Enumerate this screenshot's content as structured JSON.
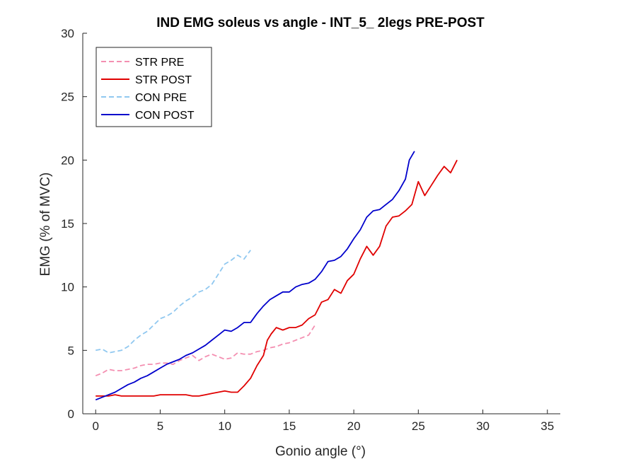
{
  "chart_data": {
    "type": "line",
    "title": "IND EMG soleus vs angle - INT_5_ 2legs PRE-POST",
    "xlabel": "Gonio angle (°)",
    "ylabel": "EMG (% of MVC)",
    "xlim": [
      -1,
      36
    ],
    "ylim": [
      0,
      30
    ],
    "xticks": [
      0,
      5,
      10,
      15,
      20,
      25,
      30,
      35
    ],
    "yticks": [
      0,
      5,
      10,
      15,
      20,
      25,
      30
    ],
    "grid": false,
    "legend_position": "top-left",
    "series": [
      {
        "name": "STR PRE",
        "color": "#f48fb1",
        "dash": true,
        "points": [
          [
            0,
            3.0
          ],
          [
            0.5,
            3.2
          ],
          [
            1,
            3.5
          ],
          [
            1.5,
            3.4
          ],
          [
            2,
            3.4
          ],
          [
            2.5,
            3.5
          ],
          [
            3,
            3.6
          ],
          [
            3.5,
            3.8
          ],
          [
            4,
            3.9
          ],
          [
            4.5,
            3.9
          ],
          [
            5,
            4.0
          ],
          [
            5.5,
            4.0
          ],
          [
            6,
            3.9
          ],
          [
            6.5,
            4.2
          ],
          [
            7,
            4.4
          ],
          [
            7.5,
            4.6
          ],
          [
            8,
            4.2
          ],
          [
            8.5,
            4.5
          ],
          [
            9,
            4.7
          ],
          [
            9.5,
            4.5
          ],
          [
            10,
            4.3
          ],
          [
            10.5,
            4.4
          ],
          [
            11,
            4.8
          ],
          [
            11.5,
            4.7
          ],
          [
            12,
            4.7
          ],
          [
            12.5,
            4.9
          ],
          [
            13,
            5.0
          ],
          [
            13.5,
            5.2
          ],
          [
            14,
            5.3
          ],
          [
            14.5,
            5.5
          ],
          [
            15,
            5.6
          ],
          [
            15.5,
            5.8
          ],
          [
            16,
            6.0
          ],
          [
            16.5,
            6.2
          ],
          [
            17,
            7.0
          ]
        ]
      },
      {
        "name": "STR POST",
        "color": "#e00000",
        "dash": false,
        "points": [
          [
            0,
            1.4
          ],
          [
            0.5,
            1.4
          ],
          [
            1,
            1.4
          ],
          [
            1.5,
            1.5
          ],
          [
            2,
            1.4
          ],
          [
            2.5,
            1.4
          ],
          [
            3,
            1.4
          ],
          [
            3.5,
            1.4
          ],
          [
            4,
            1.4
          ],
          [
            4.5,
            1.4
          ],
          [
            5,
            1.5
          ],
          [
            5.5,
            1.5
          ],
          [
            6,
            1.5
          ],
          [
            6.5,
            1.5
          ],
          [
            7,
            1.5
          ],
          [
            7.5,
            1.4
          ],
          [
            8,
            1.4
          ],
          [
            8.5,
            1.5
          ],
          [
            9,
            1.6
          ],
          [
            9.5,
            1.7
          ],
          [
            10,
            1.8
          ],
          [
            10.5,
            1.7
          ],
          [
            11,
            1.7
          ],
          [
            11.5,
            2.2
          ],
          [
            12,
            2.8
          ],
          [
            12.5,
            3.8
          ],
          [
            13,
            4.6
          ],
          [
            13.3,
            5.8
          ],
          [
            13.6,
            6.3
          ],
          [
            14,
            6.8
          ],
          [
            14.5,
            6.6
          ],
          [
            15,
            6.8
          ],
          [
            15.5,
            6.8
          ],
          [
            16,
            7.0
          ],
          [
            16.5,
            7.5
          ],
          [
            17,
            7.8
          ],
          [
            17.5,
            8.8
          ],
          [
            18,
            9.0
          ],
          [
            18.5,
            9.8
          ],
          [
            19,
            9.5
          ],
          [
            19.5,
            10.5
          ],
          [
            20,
            11.0
          ],
          [
            20.5,
            12.2
          ],
          [
            21,
            13.2
          ],
          [
            21.5,
            12.5
          ],
          [
            22,
            13.2
          ],
          [
            22.5,
            14.8
          ],
          [
            23,
            15.5
          ],
          [
            23.5,
            15.6
          ],
          [
            24,
            16.0
          ],
          [
            24.5,
            16.5
          ],
          [
            25,
            18.3
          ],
          [
            25.5,
            17.2
          ],
          [
            26,
            18.0
          ],
          [
            26.5,
            18.8
          ],
          [
            27,
            19.5
          ],
          [
            27.5,
            19.0
          ],
          [
            28,
            20.0
          ]
        ]
      },
      {
        "name": "CON PRE",
        "color": "#90c8f0",
        "dash": true,
        "points": [
          [
            0,
            5.0
          ],
          [
            0.5,
            5.1
          ],
          [
            1,
            4.8
          ],
          [
            1.5,
            4.9
          ],
          [
            2,
            5.0
          ],
          [
            2.5,
            5.3
          ],
          [
            3,
            5.8
          ],
          [
            3.5,
            6.2
          ],
          [
            4,
            6.5
          ],
          [
            4.5,
            7.0
          ],
          [
            5,
            7.5
          ],
          [
            5.5,
            7.7
          ],
          [
            6,
            8.0
          ],
          [
            6.5,
            8.5
          ],
          [
            7,
            8.9
          ],
          [
            7.5,
            9.2
          ],
          [
            8,
            9.6
          ],
          [
            8.5,
            9.8
          ],
          [
            9,
            10.2
          ],
          [
            9.5,
            11.0
          ],
          [
            10,
            11.8
          ],
          [
            10.5,
            12.1
          ],
          [
            11,
            12.5
          ],
          [
            11.5,
            12.2
          ],
          [
            12,
            12.9
          ]
        ]
      },
      {
        "name": "CON POST",
        "color": "#0000cc",
        "dash": false,
        "points": [
          [
            0,
            1.1
          ],
          [
            0.5,
            1.3
          ],
          [
            1,
            1.5
          ],
          [
            1.5,
            1.7
          ],
          [
            2,
            2.0
          ],
          [
            2.5,
            2.3
          ],
          [
            3,
            2.5
          ],
          [
            3.5,
            2.8
          ],
          [
            4,
            3.0
          ],
          [
            4.5,
            3.3
          ],
          [
            5,
            3.6
          ],
          [
            5.5,
            3.9
          ],
          [
            6,
            4.1
          ],
          [
            6.5,
            4.3
          ],
          [
            7,
            4.6
          ],
          [
            7.5,
            4.8
          ],
          [
            8,
            5.1
          ],
          [
            8.5,
            5.4
          ],
          [
            9,
            5.8
          ],
          [
            9.5,
            6.2
          ],
          [
            10,
            6.6
          ],
          [
            10.5,
            6.5
          ],
          [
            11,
            6.8
          ],
          [
            11.5,
            7.2
          ],
          [
            12,
            7.2
          ],
          [
            12.5,
            7.9
          ],
          [
            13,
            8.5
          ],
          [
            13.5,
            9.0
          ],
          [
            14,
            9.3
          ],
          [
            14.5,
            9.6
          ],
          [
            15,
            9.6
          ],
          [
            15.5,
            10.0
          ],
          [
            16,
            10.2
          ],
          [
            16.5,
            10.3
          ],
          [
            17,
            10.6
          ],
          [
            17.5,
            11.2
          ],
          [
            18,
            12.0
          ],
          [
            18.5,
            12.1
          ],
          [
            19,
            12.4
          ],
          [
            19.5,
            13.0
          ],
          [
            20,
            13.8
          ],
          [
            20.5,
            14.5
          ],
          [
            21,
            15.5
          ],
          [
            21.5,
            16.0
          ],
          [
            22,
            16.1
          ],
          [
            22.5,
            16.5
          ],
          [
            23,
            16.9
          ],
          [
            23.5,
            17.6
          ],
          [
            24,
            18.5
          ],
          [
            24.3,
            20.0
          ],
          [
            24.7,
            20.7
          ]
        ]
      }
    ]
  }
}
